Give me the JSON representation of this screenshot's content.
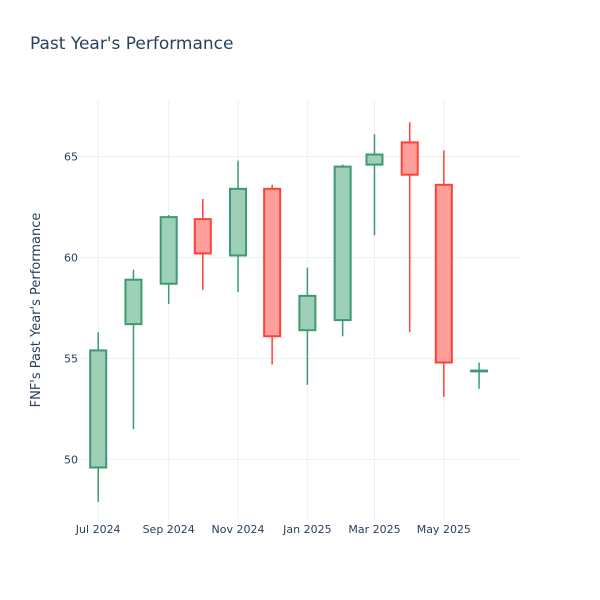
{
  "chart_data": {
    "type": "candlestick",
    "title": "Past Year's Performance",
    "xlabel": "",
    "ylabel": "FNF's Past Year's Performance",
    "ylim": [
      47,
      67.8
    ],
    "yticks": [
      50,
      55,
      60,
      65
    ],
    "xlim": [
      "2024-06-15",
      "2025-07-07"
    ],
    "xticks": [
      {
        "date": "2024-07-01",
        "label": "Jul 2024"
      },
      {
        "date": "2024-09-01",
        "label": "Sep 2024"
      },
      {
        "date": "2024-11-01",
        "label": "Nov 2024"
      },
      {
        "date": "2025-01-01",
        "label": "Jan 2025"
      },
      {
        "date": "2025-03-01",
        "label": "Mar 2025"
      },
      {
        "date": "2025-05-01",
        "label": "May 2025"
      }
    ],
    "colors": {
      "increasing_line": "#3d9970",
      "increasing_fill": "#9ecfb7",
      "decreasing_line": "#ff4136",
      "decreasing_fill": "#ff9f9b",
      "grid": "#ebf0f8",
      "text": "#2a3f5f"
    },
    "grid": true,
    "candles": [
      {
        "date": "2024-07-01",
        "open": 49.6,
        "high": 56.3,
        "low": 47.9,
        "close": 55.4
      },
      {
        "date": "2024-08-01",
        "open": 56.7,
        "high": 59.4,
        "low": 51.5,
        "close": 58.9
      },
      {
        "date": "2024-09-01",
        "open": 58.7,
        "high": 62.1,
        "low": 57.7,
        "close": 62.0
      },
      {
        "date": "2024-10-01",
        "open": 61.9,
        "high": 62.9,
        "low": 58.4,
        "close": 60.2
      },
      {
        "date": "2024-11-01",
        "open": 60.1,
        "high": 64.8,
        "low": 58.3,
        "close": 63.4
      },
      {
        "date": "2024-12-01",
        "open": 63.4,
        "high": 63.6,
        "low": 54.7,
        "close": 56.1
      },
      {
        "date": "2025-01-01",
        "open": 56.4,
        "high": 59.5,
        "low": 53.7,
        "close": 58.1
      },
      {
        "date": "2025-02-01",
        "open": 56.9,
        "high": 64.6,
        "low": 56.1,
        "close": 64.5
      },
      {
        "date": "2025-03-01",
        "open": 64.6,
        "high": 66.1,
        "low": 61.1,
        "close": 65.1
      },
      {
        "date": "2025-04-01",
        "open": 65.7,
        "high": 66.7,
        "low": 56.3,
        "close": 64.1
      },
      {
        "date": "2025-05-01",
        "open": 63.6,
        "high": 65.3,
        "low": 53.1,
        "close": 54.8
      },
      {
        "date": "2025-06-01",
        "open": 54.4,
        "high": 54.8,
        "low": 53.5,
        "close": 54.4
      }
    ]
  }
}
